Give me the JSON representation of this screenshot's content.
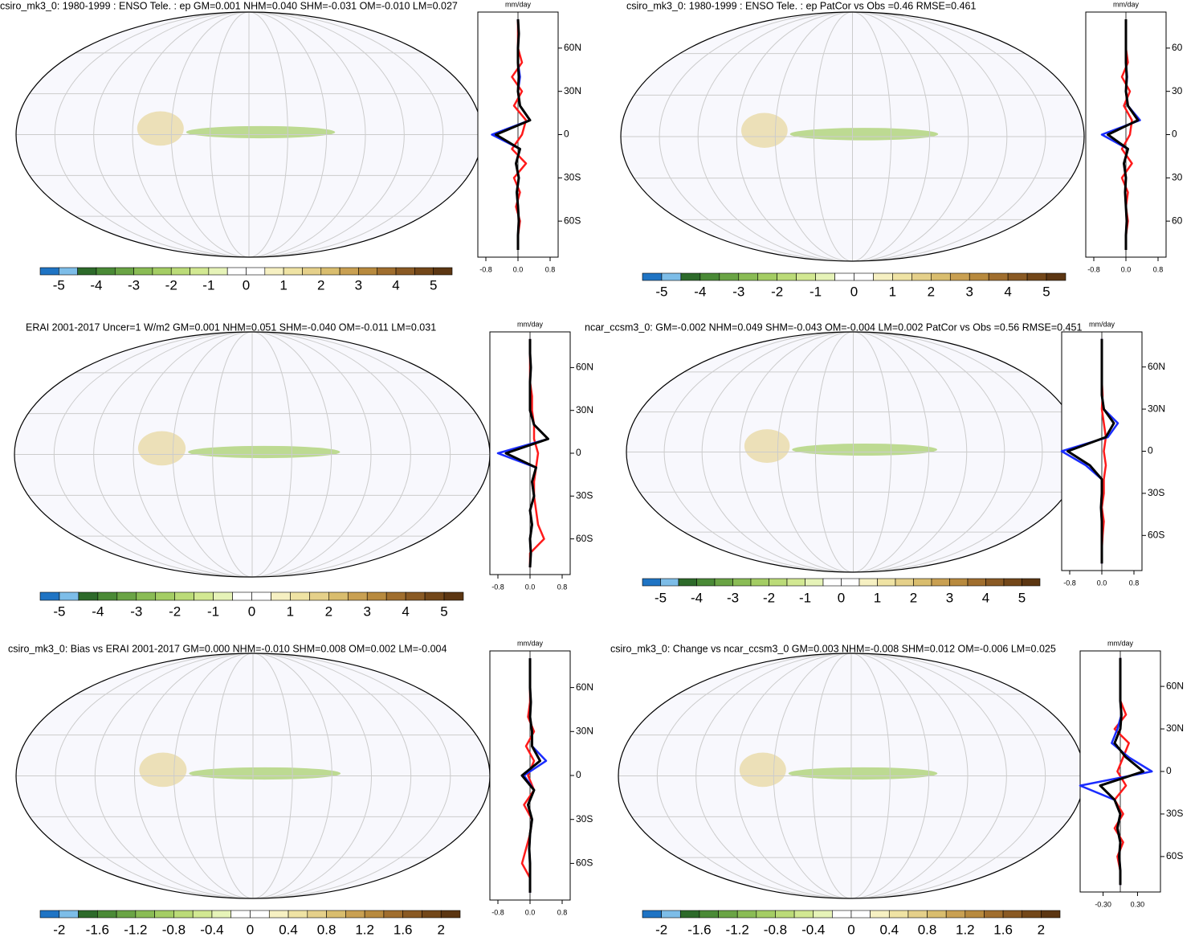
{
  "chart_data": [
    {
      "type": "map",
      "title": "csiro_mk3_0: 1980-1999 : ENSO Tele. : ep GM=0.001 NHM=0.040 SHM=-0.031 OM=-0.010 LM=0.027",
      "colorbar": {
        "colors": [
          "#1f74c4",
          "#7dbde8",
          "#2d6a2a",
          "#4a8a36",
          "#6aa445",
          "#8abc55",
          "#a4cd64",
          "#bbdb78",
          "#d2e892",
          "#e6f3b8",
          "#ffffff",
          "#ffffff",
          "#f6f0c2",
          "#efe3a4",
          "#e5d08a",
          "#d9bd6e",
          "#c9a052",
          "#b88a3e",
          "#a06e2e",
          "#8a5a24",
          "#734719",
          "#5c3612"
        ],
        "lim": [
          -5.5,
          5.5
        ],
        "ticks": [
          -5,
          -4,
          -3,
          -2,
          -1,
          0,
          1,
          2,
          3,
          4,
          5
        ]
      }
    },
    {
      "type": "line",
      "unit": "mm/day",
      "y": [
        -80,
        -70,
        -60,
        -50,
        -40,
        -30,
        -20,
        -10,
        0,
        10,
        20,
        30,
        40,
        50,
        60,
        70,
        80
      ],
      "ylim": [
        -85,
        85
      ],
      "yticks": [
        {
          "value": 60,
          "label": "60N"
        },
        {
          "value": 30,
          "label": "30N"
        },
        0,
        {
          "value": -30,
          "label": "30S"
        },
        {
          "value": -60,
          "label": "60S"
        }
      ],
      "xlim": [
        -1,
        1
      ],
      "xticks": [
        -0.8,
        {
          "value": 0,
          "label": "0.0"
        },
        0.8
      ],
      "series": [
        {
          "color": "#ff1a1a",
          "values": [
            0,
            0,
            0.05,
            -0.05,
            0.05,
            -0.1,
            0.2,
            -0.15,
            0.1,
            0.2,
            -0.1,
            0.1,
            -0.15,
            0.1,
            0,
            0,
            0
          ]
        },
        {
          "color": "#1a2cff",
          "values": [
            0,
            0,
            0.02,
            0,
            -0.03,
            0.02,
            -0.05,
            0.05,
            -0.65,
            0.3,
            0.05,
            0,
            0.05,
            0,
            0,
            0.02,
            0
          ]
        },
        {
          "color": "#000000",
          "values": [
            0,
            0,
            0.02,
            0,
            -0.03,
            0.02,
            -0.05,
            0.05,
            -0.55,
            0.3,
            0.05,
            0,
            0.02,
            0,
            0,
            0.02,
            0
          ]
        }
      ]
    },
    {
      "type": "map",
      "title": "csiro_mk3_0: 1980-1999 : ENSO Tele. : ep PatCor vs Obs =0.46 RMSE=0.461",
      "colorbar": {
        "colors": [
          "#1f74c4",
          "#7dbde8",
          "#2d6a2a",
          "#4a8a36",
          "#6aa445",
          "#8abc55",
          "#a4cd64",
          "#bbdb78",
          "#d2e892",
          "#e6f3b8",
          "#ffffff",
          "#ffffff",
          "#f6f0c2",
          "#efe3a4",
          "#e5d08a",
          "#d9bd6e",
          "#c9a052",
          "#b88a3e",
          "#a06e2e",
          "#8a5a24",
          "#734719",
          "#5c3612"
        ],
        "lim": [
          -5.5,
          5.5
        ],
        "ticks": [
          -5,
          -4,
          -3,
          -2,
          -1,
          0,
          1,
          2,
          3,
          4,
          5
        ]
      }
    },
    {
      "type": "line",
      "unit": "mm/day",
      "y": [
        -80,
        -70,
        -60,
        -50,
        -40,
        -30,
        -20,
        -10,
        0,
        10,
        20,
        30,
        40,
        50,
        60,
        70,
        80
      ],
      "ylim": [
        -85,
        85
      ],
      "yticks": [
        {
          "value": 60,
          "label": "60"
        },
        {
          "value": 30,
          "label": "30"
        },
        0,
        {
          "value": -30,
          "label": "30"
        },
        {
          "value": -60,
          "label": "60"
        }
      ],
      "xlim": [
        -1,
        1
      ],
      "xticks": [
        -0.8,
        {
          "value": 0,
          "label": "0.0"
        },
        0.8
      ],
      "series": [
        {
          "color": "#ff1a1a",
          "values": [
            0,
            0,
            0.05,
            0,
            0.05,
            -0.1,
            0.15,
            -0.1,
            0.1,
            0.15,
            -0.05,
            0.1,
            -0.1,
            0.05,
            0,
            0,
            0
          ]
        },
        {
          "color": "#1a2cff",
          "values": [
            0,
            0,
            0.02,
            0,
            -0.02,
            0,
            -0.05,
            0.05,
            -0.6,
            0.35,
            0.05,
            0,
            0.03,
            0,
            0,
            0,
            0
          ]
        },
        {
          "color": "#000000",
          "values": [
            0,
            0,
            0.02,
            0,
            -0.02,
            0,
            -0.05,
            0.05,
            -0.45,
            0.3,
            0.05,
            0,
            0.02,
            0,
            0,
            0,
            0
          ]
        }
      ]
    },
    {
      "type": "map",
      "title": "ERAI 2001-2017 Uncer=1 W/m2 GM=0.001 NHM=0.051 SHM=-0.040 OM=-0.011 LM=0.031",
      "colorbar": {
        "colors": [
          "#1f74c4",
          "#7dbde8",
          "#2d6a2a",
          "#4a8a36",
          "#6aa445",
          "#8abc55",
          "#a4cd64",
          "#bbdb78",
          "#d2e892",
          "#e6f3b8",
          "#ffffff",
          "#ffffff",
          "#f6f0c2",
          "#efe3a4",
          "#e5d08a",
          "#d9bd6e",
          "#c9a052",
          "#b88a3e",
          "#a06e2e",
          "#8a5a24",
          "#734719",
          "#5c3612"
        ],
        "lim": [
          -5.5,
          5.5
        ],
        "ticks": [
          -5,
          -4,
          -3,
          -2,
          -1,
          0,
          1,
          2,
          3,
          4,
          5
        ]
      }
    },
    {
      "type": "line",
      "unit": "mm/day",
      "y": [
        -80,
        -70,
        -60,
        -50,
        -40,
        -30,
        -20,
        -10,
        0,
        10,
        20,
        30,
        40,
        50,
        60,
        70,
        80
      ],
      "ylim": [
        -85,
        85
      ],
      "yticks": [
        {
          "value": 60,
          "label": "60N"
        },
        {
          "value": 30,
          "label": "30N"
        },
        0,
        {
          "value": -30,
          "label": "30S"
        },
        {
          "value": -60,
          "label": "60S"
        }
      ],
      "xlim": [
        -1,
        1
      ],
      "xticks": [
        -0.8,
        {
          "value": 0,
          "label": "0.0"
        },
        0.8
      ],
      "series": [
        {
          "color": "#ff1a1a",
          "values": [
            0,
            0,
            0.35,
            0.2,
            0.15,
            0.1,
            0.1,
            0.15,
            0.2,
            0.1,
            0.1,
            0.05,
            0.05,
            0,
            0,
            0,
            0
          ]
        },
        {
          "color": "#1a2cff",
          "values": [
            0,
            0.02,
            0,
            0.05,
            0,
            0.1,
            0.05,
            0.15,
            -0.8,
            0.45,
            0.1,
            0,
            0,
            0,
            0.02,
            0,
            0
          ]
        },
        {
          "color": "#000000",
          "values": [
            0,
            0.02,
            0,
            0.05,
            0,
            0.1,
            0.05,
            0.15,
            -0.6,
            0.45,
            0.1,
            0,
            0,
            0,
            0.02,
            0,
            0
          ]
        }
      ]
    },
    {
      "type": "map",
      "title": "ncar_ccsm3_0: GM=-0.002 NHM=0.049 SHM=-0.043 OM=-0.004 LM=0.002 PatCor vs Obs =0.56 RMSE=0.451",
      "colorbar": {
        "colors": [
          "#1f74c4",
          "#7dbde8",
          "#2d6a2a",
          "#4a8a36",
          "#6aa445",
          "#8abc55",
          "#a4cd64",
          "#bbdb78",
          "#d2e892",
          "#e6f3b8",
          "#ffffff",
          "#ffffff",
          "#f6f0c2",
          "#efe3a4",
          "#e5d08a",
          "#d9bd6e",
          "#c9a052",
          "#b88a3e",
          "#a06e2e",
          "#8a5a24",
          "#734719",
          "#5c3612"
        ],
        "lim": [
          -5.5,
          5.5
        ],
        "ticks": [
          -5,
          -4,
          -3,
          -2,
          -1,
          0,
          1,
          2,
          3,
          4,
          5
        ]
      }
    },
    {
      "type": "line",
      "unit": "mm/day",
      "y": [
        -80,
        -70,
        -60,
        -50,
        -40,
        -30,
        -20,
        -10,
        0,
        10,
        20,
        30,
        40,
        50,
        60,
        70,
        80
      ],
      "ylim": [
        -85,
        85
      ],
      "yticks": [
        {
          "value": 60,
          "label": "60N"
        },
        {
          "value": 30,
          "label": "30N"
        },
        0,
        {
          "value": -30,
          "label": "30S"
        },
        {
          "value": -60,
          "label": "60S"
        }
      ],
      "xlim": [
        -1,
        1
      ],
      "xticks": [
        -0.8,
        {
          "value": 0,
          "label": "0.0"
        },
        0.8
      ],
      "series": [
        {
          "color": "#ff1a1a",
          "values": [
            0,
            0,
            0.02,
            0.05,
            0,
            0.05,
            0.05,
            0.1,
            0.05,
            0.1,
            0.05,
            0,
            0.02,
            0,
            0,
            0,
            0
          ]
        },
        {
          "color": "#1a2cff",
          "values": [
            0,
            0,
            0,
            0,
            -0.02,
            0,
            0,
            -0.4,
            -1.0,
            0.15,
            0.4,
            0.05,
            0,
            0,
            0,
            0,
            0
          ]
        },
        {
          "color": "#000000",
          "values": [
            0,
            0,
            0,
            0,
            -0.02,
            0,
            0,
            -0.3,
            -0.85,
            0.1,
            0.3,
            0.05,
            0,
            0,
            0,
            0,
            0
          ]
        }
      ]
    },
    {
      "type": "map",
      "title": "csiro_mk3_0: Bias vs ERAI 2001-2017 GM=0.000 NHM=-0.010 SHM=0.008 OM=0.002 LM=-0.004",
      "colorbar": {
        "colors": [
          "#1f74c4",
          "#7dbde8",
          "#2d6a2a",
          "#4a8a36",
          "#6aa445",
          "#8abc55",
          "#a4cd64",
          "#bbdb78",
          "#d2e892",
          "#e6f3b8",
          "#ffffff",
          "#ffffff",
          "#f6f0c2",
          "#efe3a4",
          "#e5d08a",
          "#d9bd6e",
          "#c9a052",
          "#b88a3e",
          "#a06e2e",
          "#8a5a24",
          "#734719",
          "#5c3612"
        ],
        "lim": [
          -2.2,
          2.2
        ],
        "ticks": [
          -2,
          -1.6,
          -1.2,
          -0.8,
          -0.4,
          0,
          0.4,
          0.8,
          1.2,
          1.6,
          2
        ]
      }
    },
    {
      "type": "line",
      "unit": "mm/day",
      "y": [
        -80,
        -70,
        -60,
        -50,
        -40,
        -30,
        -20,
        -10,
        0,
        10,
        20,
        30,
        40,
        50,
        60,
        70,
        80
      ],
      "ylim": [
        -85,
        85
      ],
      "yticks": [
        {
          "value": 60,
          "label": "60N"
        },
        {
          "value": 30,
          "label": "30N"
        },
        0,
        {
          "value": -30,
          "label": "30S"
        },
        {
          "value": -60,
          "label": "60S"
        }
      ],
      "xlim": [
        -1,
        1
      ],
      "xticks": [
        -0.8,
        {
          "value": 0,
          "label": "0.0"
        },
        0.8
      ],
      "series": [
        {
          "color": "#ff1a1a",
          "values": [
            0,
            0,
            -0.2,
            -0.1,
            0,
            0.05,
            -0.15,
            0.1,
            -0.05,
            0.1,
            -0.1,
            0.1,
            -0.05,
            0,
            0,
            0,
            0
          ]
        },
        {
          "color": "#1a2cff",
          "values": [
            0,
            0,
            0,
            -0.02,
            0,
            0.05,
            -0.05,
            0.1,
            -0.15,
            0.4,
            0.05,
            0.05,
            0,
            0.02,
            0,
            0,
            0
          ]
        },
        {
          "color": "#000000",
          "values": [
            0,
            0,
            0,
            -0.02,
            0,
            0.05,
            -0.05,
            0.1,
            -0.2,
            0.25,
            0.05,
            0.05,
            0,
            0.02,
            0,
            0,
            0
          ]
        }
      ]
    },
    {
      "type": "map",
      "title": "csiro_mk3_0: Change vs ncar_ccsm3_0 GM=0.003 NHM=-0.008 SHM=0.012 OM=-0.006 LM=0.025",
      "colorbar": {
        "colors": [
          "#1f74c4",
          "#7dbde8",
          "#2d6a2a",
          "#4a8a36",
          "#6aa445",
          "#8abc55",
          "#a4cd64",
          "#bbdb78",
          "#d2e892",
          "#e6f3b8",
          "#ffffff",
          "#ffffff",
          "#f6f0c2",
          "#efe3a4",
          "#e5d08a",
          "#d9bd6e",
          "#c9a052",
          "#b88a3e",
          "#a06e2e",
          "#8a5a24",
          "#734719",
          "#5c3612"
        ],
        "lim": [
          -2.2,
          2.2
        ],
        "ticks": [
          -2,
          -1.6,
          -1.2,
          -0.8,
          -0.4,
          0,
          0.4,
          0.8,
          1.2,
          1.6,
          2
        ]
      }
    },
    {
      "type": "line",
      "unit": "mm/day",
      "y": [
        -80,
        -70,
        -60,
        -50,
        -40,
        -30,
        -20,
        -10,
        0,
        10,
        20,
        30,
        40,
        50,
        60,
        70,
        80
      ],
      "ylim": [
        -85,
        85
      ],
      "yticks": [
        {
          "value": 60,
          "label": "60N"
        },
        {
          "value": 30,
          "label": "30N"
        },
        0,
        {
          "value": -30,
          "label": "30S"
        },
        {
          "value": -60,
          "label": "60S"
        }
      ],
      "xlim": [
        -0.7,
        0.7
      ],
      "xticks": [
        {
          "value": -0.3,
          "label": "-0.30"
        },
        {
          "value": 0.3,
          "label": "0.30"
        }
      ],
      "series": [
        {
          "color": "#ff1a1a",
          "values": [
            0,
            0,
            -0.05,
            0.05,
            -0.1,
            0.05,
            -0.1,
            0.1,
            -0.05,
            0.05,
            0.15,
            -0.1,
            0.1,
            0,
            0,
            0,
            0
          ]
        },
        {
          "color": "#1a2cff",
          "values": [
            0,
            0,
            -0.02,
            0,
            -0.05,
            0,
            -0.1,
            -0.7,
            0.55,
            0.15,
            -0.15,
            -0.05,
            0.02,
            0,
            0,
            0,
            0
          ]
        },
        {
          "color": "#000000",
          "values": [
            0,
            0,
            -0.02,
            0,
            -0.05,
            0,
            -0.1,
            -0.35,
            0.4,
            0.1,
            -0.1,
            0,
            0.02,
            0,
            0,
            0,
            0
          ]
        }
      ]
    }
  ]
}
